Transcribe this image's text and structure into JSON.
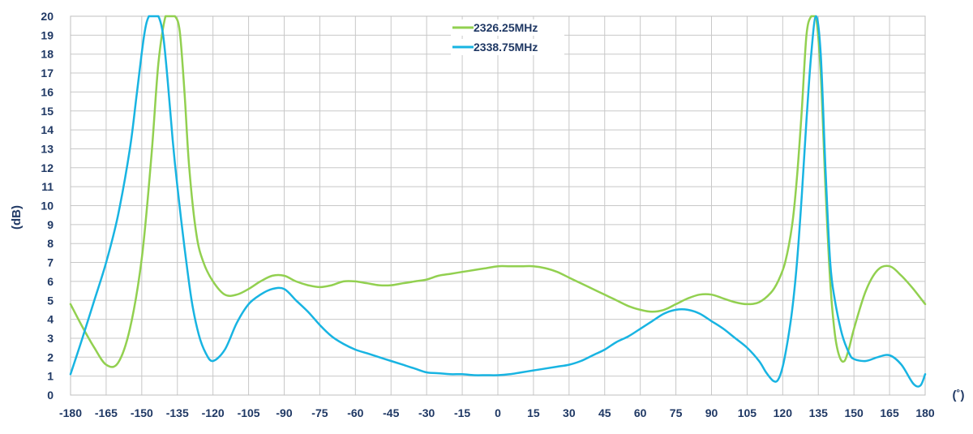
{
  "chart_data": {
    "type": "line",
    "title": "",
    "xlabel": "(˚)",
    "ylabel": "(dB)",
    "xlim": [
      -180,
      180
    ],
    "ylim": [
      0,
      20
    ],
    "x_ticks": [
      -180,
      -165,
      -150,
      -135,
      -120,
      -105,
      -90,
      -75,
      -60,
      -45,
      -30,
      -15,
      0,
      15,
      30,
      45,
      60,
      75,
      90,
      105,
      120,
      135,
      150,
      165,
      180
    ],
    "y_ticks": [
      0,
      1,
      2,
      3,
      4,
      5,
      6,
      7,
      8,
      9,
      10,
      11,
      12,
      13,
      14,
      15,
      16,
      17,
      18,
      19,
      20
    ],
    "grid": true,
    "legend_position": "top-center",
    "series": [
      {
        "name": "2326.25MHz",
        "color": "#92D050",
        "x": [
          -180,
          -175,
          -170,
          -165,
          -160,
          -155,
          -150,
          -146,
          -143,
          -140,
          -138,
          -136,
          -134,
          -132,
          -130,
          -127,
          -124,
          -120,
          -115,
          -110,
          -105,
          -100,
          -95,
          -90,
          -85,
          -80,
          -75,
          -70,
          -65,
          -60,
          -55,
          -50,
          -45,
          -40,
          -35,
          -30,
          -25,
          -20,
          -15,
          -10,
          -5,
          0,
          5,
          10,
          15,
          20,
          25,
          30,
          35,
          40,
          45,
          50,
          55,
          60,
          65,
          70,
          75,
          80,
          85,
          90,
          95,
          100,
          105,
          110,
          115,
          118,
          121,
          124,
          126,
          128,
          130,
          132,
          134,
          136,
          138,
          140,
          142,
          144,
          146,
          148,
          150,
          155,
          160,
          165,
          170,
          175,
          180
        ],
        "y": [
          4.8,
          3.6,
          2.5,
          1.6,
          1.7,
          3.5,
          7.2,
          12.5,
          17.5,
          20,
          20,
          20,
          19.2,
          16.0,
          12.0,
          8.5,
          7.0,
          6.0,
          5.3,
          5.3,
          5.6,
          6.0,
          6.3,
          6.3,
          6.0,
          5.8,
          5.7,
          5.8,
          6.0,
          6.0,
          5.9,
          5.8,
          5.8,
          5.9,
          6.0,
          6.1,
          6.3,
          6.4,
          6.5,
          6.6,
          6.7,
          6.8,
          6.8,
          6.8,
          6.8,
          6.7,
          6.5,
          6.2,
          5.9,
          5.6,
          5.3,
          5.0,
          4.7,
          4.5,
          4.4,
          4.5,
          4.8,
          5.1,
          5.3,
          5.3,
          5.1,
          4.9,
          4.8,
          4.9,
          5.4,
          6.0,
          7.0,
          9.0,
          11.5,
          15.0,
          19.0,
          20,
          20,
          17.0,
          11.0,
          6.0,
          3.2,
          2.0,
          1.8,
          2.5,
          3.5,
          5.5,
          6.6,
          6.8,
          6.3,
          5.6,
          4.8
        ]
      },
      {
        "name": "2338.75MHz",
        "color": "#18B4E2",
        "x": [
          -180,
          -175,
          -170,
          -165,
          -160,
          -155,
          -152,
          -149,
          -147,
          -145,
          -143,
          -141,
          -139,
          -137,
          -135,
          -132,
          -129,
          -126,
          -123,
          -120,
          -115,
          -110,
          -105,
          -100,
          -95,
          -90,
          -85,
          -80,
          -75,
          -70,
          -65,
          -60,
          -55,
          -50,
          -45,
          -40,
          -35,
          -30,
          -25,
          -20,
          -15,
          -10,
          -5,
          0,
          5,
          10,
          15,
          20,
          25,
          30,
          35,
          40,
          45,
          50,
          55,
          60,
          65,
          70,
          75,
          80,
          85,
          90,
          95,
          100,
          105,
          110,
          113,
          116,
          118,
          120,
          122,
          124,
          126,
          128,
          130,
          132,
          134,
          136,
          138,
          140,
          142,
          145,
          148,
          150,
          155,
          160,
          165,
          170,
          175,
          178,
          180
        ],
        "y": [
          1.1,
          3.0,
          5.0,
          7.0,
          9.5,
          13.0,
          16.0,
          19.0,
          20,
          20,
          20,
          19.0,
          16.5,
          13.5,
          11.0,
          7.8,
          5.0,
          3.2,
          2.2,
          1.8,
          2.4,
          3.8,
          4.8,
          5.3,
          5.6,
          5.6,
          5.0,
          4.4,
          3.7,
          3.1,
          2.7,
          2.4,
          2.2,
          2.0,
          1.8,
          1.6,
          1.4,
          1.2,
          1.15,
          1.1,
          1.1,
          1.05,
          1.05,
          1.05,
          1.1,
          1.2,
          1.3,
          1.4,
          1.5,
          1.6,
          1.8,
          2.1,
          2.4,
          2.8,
          3.1,
          3.5,
          3.9,
          4.3,
          4.5,
          4.5,
          4.3,
          3.9,
          3.5,
          3.0,
          2.5,
          1.8,
          1.2,
          0.75,
          0.8,
          1.5,
          2.8,
          4.5,
          7.0,
          10.5,
          14.5,
          18.0,
          20,
          18.0,
          12.0,
          7.0,
          5.0,
          3.2,
          2.2,
          1.9,
          1.8,
          2.0,
          2.1,
          1.6,
          0.6,
          0.5,
          1.1
        ]
      }
    ]
  }
}
